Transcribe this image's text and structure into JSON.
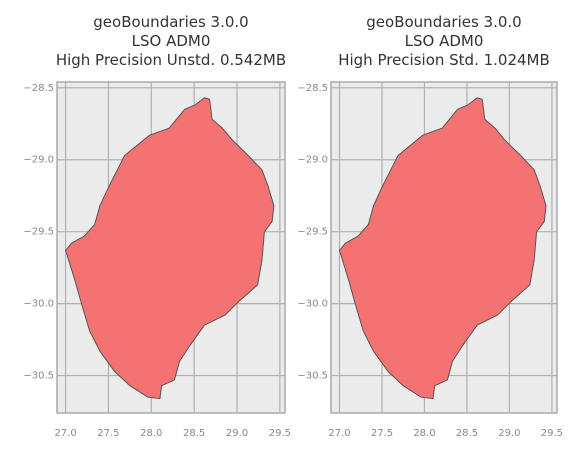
{
  "chart_data": [
    {
      "type": "map",
      "title": [
        "geoBoundaries 3.0.0",
        "LSO ADM0",
        "High Precision Unstd. 0.542MB"
      ],
      "xlim": [
        26.9,
        29.56
      ],
      "ylim": [
        -30.76,
        -28.46
      ],
      "xticks": [
        {
          "value": 27.0,
          "label": "27.0"
        },
        27.5,
        {
          "value": 28.0,
          "label": "28.0"
        },
        28.5,
        {
          "value": 29.0,
          "label": "29.0"
        },
        29.5
      ],
      "yticks": [
        {
          "value": -28.5,
          "label": "−28.5"
        },
        {
          "value": -29.0,
          "label": "−29.0"
        },
        {
          "value": -29.5,
          "label": "−29.5"
        },
        {
          "value": -30.0,
          "label": "−30.0"
        },
        {
          "value": -30.5,
          "label": "−30.5"
        }
      ],
      "grid": true,
      "series": [
        {
          "color": "#f47272",
          "x": [
            27.0,
            27.07,
            27.22,
            27.34,
            27.4,
            27.51,
            27.69,
            27.98,
            28.21,
            28.39,
            28.51,
            28.62,
            28.68,
            28.71,
            28.83,
            28.94,
            29.13,
            29.29,
            29.36,
            29.43,
            29.41,
            29.32,
            29.29,
            29.24,
            29.03,
            28.86,
            28.62,
            28.45,
            28.33,
            28.27,
            28.12,
            28.1,
            27.96,
            27.75,
            27.57,
            27.4,
            27.28,
            27.19,
            27.11
          ],
          "y": [
            -29.63,
            -29.58,
            -29.53,
            -29.45,
            -29.32,
            -29.18,
            -28.97,
            -28.83,
            -28.78,
            -28.65,
            -28.62,
            -28.57,
            -28.58,
            -28.72,
            -28.78,
            -28.86,
            -28.97,
            -29.07,
            -29.18,
            -29.32,
            -29.43,
            -29.5,
            -29.7,
            -29.87,
            -29.98,
            -30.08,
            -30.15,
            -30.29,
            -30.4,
            -30.53,
            -30.57,
            -30.66,
            -30.65,
            -30.57,
            -30.47,
            -30.33,
            -30.19,
            -30.01,
            -29.84
          ]
        }
      ]
    },
    {
      "type": "map",
      "title": [
        "geoBoundaries 3.0.0",
        "LSO ADM0",
        "High Precision Std. 1.024MB"
      ],
      "xlim": [
        26.9,
        29.56
      ],
      "ylim": [
        -30.76,
        -28.46
      ],
      "xticks": [
        {
          "value": 27.0,
          "label": "27.0"
        },
        27.5,
        {
          "value": 28.0,
          "label": "28.0"
        },
        28.5,
        {
          "value": 29.0,
          "label": "29.0"
        },
        29.5
      ],
      "yticks": [
        {
          "value": -28.5,
          "label": "−28.5"
        },
        {
          "value": -29.0,
          "label": "−29.0"
        },
        {
          "value": -29.5,
          "label": "−29.5"
        },
        {
          "value": -30.0,
          "label": "−30.0"
        },
        {
          "value": -30.5,
          "label": "−30.5"
        }
      ],
      "grid": true,
      "series": [
        {
          "color": "#f47272",
          "x": [
            27.0,
            27.07,
            27.22,
            27.34,
            27.4,
            27.51,
            27.69,
            27.98,
            28.21,
            28.39,
            28.51,
            28.62,
            28.68,
            28.71,
            28.83,
            28.94,
            29.13,
            29.29,
            29.36,
            29.43,
            29.41,
            29.32,
            29.29,
            29.24,
            29.03,
            28.86,
            28.62,
            28.45,
            28.33,
            28.27,
            28.12,
            28.1,
            27.96,
            27.75,
            27.57,
            27.4,
            27.28,
            27.19,
            27.11
          ],
          "y": [
            -29.63,
            -29.58,
            -29.53,
            -29.45,
            -29.32,
            -29.18,
            -28.97,
            -28.83,
            -28.78,
            -28.65,
            -28.62,
            -28.57,
            -28.58,
            -28.72,
            -28.78,
            -28.86,
            -28.97,
            -29.07,
            -29.18,
            -29.32,
            -29.43,
            -29.5,
            -29.7,
            -29.87,
            -29.98,
            -30.08,
            -30.15,
            -30.29,
            -30.4,
            -30.53,
            -30.57,
            -30.66,
            -30.65,
            -30.57,
            -30.47,
            -30.33,
            -30.19,
            -30.01,
            -29.84
          ]
        }
      ]
    }
  ]
}
